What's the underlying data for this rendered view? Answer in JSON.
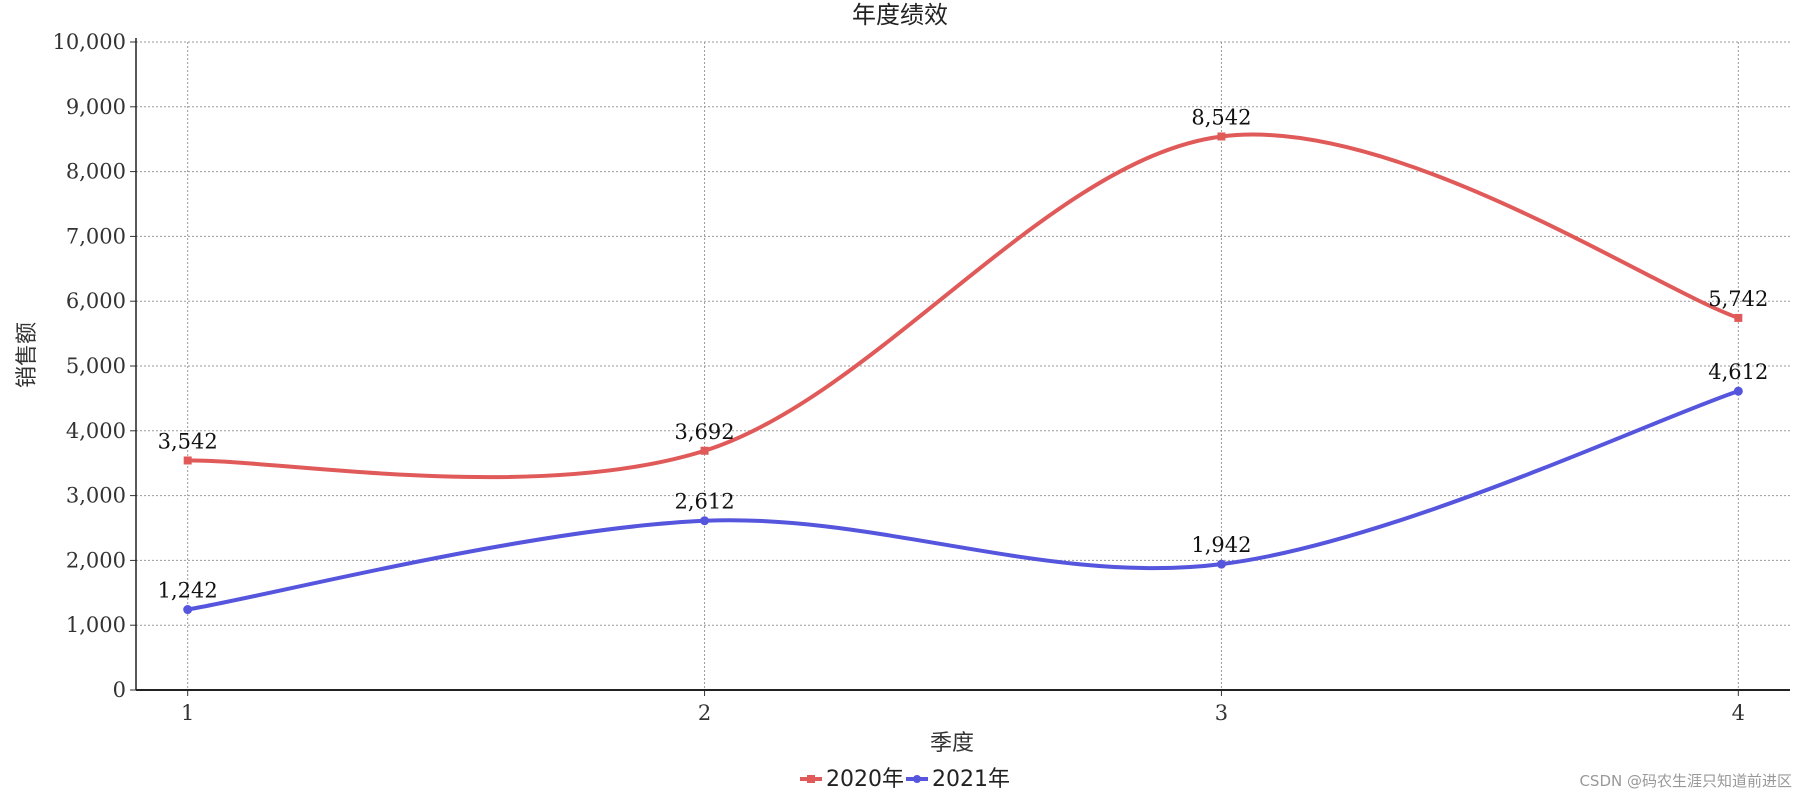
{
  "chart_data": {
    "type": "line",
    "title": "年度绩效",
    "xlabel": "季度",
    "ylabel": "销售额",
    "categories": [
      "1",
      "2",
      "3",
      "4"
    ],
    "xlim": [
      0.9,
      4.1
    ],
    "ylim": [
      0,
      10000
    ],
    "y_ticks": [
      0,
      1000,
      2000,
      3000,
      4000,
      5000,
      6000,
      7000,
      8000,
      9000,
      10000
    ],
    "y_tick_labels": [
      "0",
      "1,000",
      "2,000",
      "3,000",
      "4,000",
      "5,000",
      "6,000",
      "7,000",
      "8,000",
      "9,000",
      "10,000"
    ],
    "grid": true,
    "smooth": true,
    "legend_position": "bottom-center",
    "series": [
      {
        "name": "2020年",
        "color": "#e05a5a",
        "x": [
          1,
          2,
          3,
          4
        ],
        "values": [
          3542,
          3692,
          8542,
          5742
        ],
        "data_labels": [
          "3,542",
          "3,692",
          "8,542",
          "5,742"
        ]
      },
      {
        "name": "2021年",
        "color": "#5555dd",
        "x": [
          1,
          2,
          3,
          4
        ],
        "values": [
          1242,
          2612,
          1942,
          4612
        ],
        "data_labels": [
          "1,242",
          "2,612",
          "1,942",
          "4,612"
        ]
      }
    ]
  },
  "watermark": "CSDN @码农生涯只知道前进区"
}
